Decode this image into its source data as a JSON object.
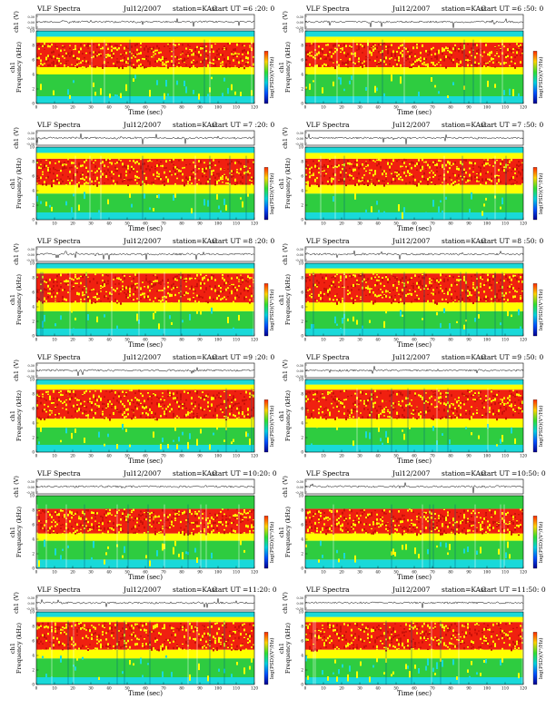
{
  "page": {
    "title_prefix": "VLF Spectra",
    "panel_count": 12
  },
  "chart_data": [
    {
      "type": "heatmap",
      "title": "VLF Spectra",
      "date": "Jul12/2007",
      "station": "station=KAG",
      "start": "start  UT =6 :20: 0",
      "ylabel_top": "ch1 (V)",
      "ylabel_main": "Frequency (kHz)",
      "series_label": "ch1",
      "xlabel": "Time (sec)",
      "colorbar_label": "log(PSD)(V²/Hz)",
      "xlim": [
        0,
        120
      ],
      "ylim": [
        0,
        10
      ],
      "x_ticks": [
        "0",
        "10",
        "20",
        "30",
        "40",
        "50",
        "60",
        "70",
        "80",
        "90",
        "100",
        "110",
        "120"
      ],
      "y_ticks": [
        "0",
        "2",
        "4",
        "6",
        "8",
        "10"
      ],
      "amp_ticks": [
        "0.30",
        "0.00",
        "-0.30"
      ],
      "bands": [
        {
          "from": 0,
          "to": 1,
          "level": "cyan"
        },
        {
          "from": 1,
          "to": 4,
          "level": "green"
        },
        {
          "from": 4,
          "to": 5,
          "level": "yellow"
        },
        {
          "from": 5,
          "to": 8.4,
          "level": "red"
        },
        {
          "from": 8.4,
          "to": 9.2,
          "level": "yellow"
        },
        {
          "from": 9.2,
          "to": 10,
          "level": "cyan"
        }
      ]
    },
    {
      "type": "heatmap",
      "title": "VLF Spectra",
      "date": "Jul12/2007",
      "station": "station=KAG",
      "start": "start  UT =6 :50: 0",
      "ylabel_top": "ch1 (V)",
      "ylabel_main": "Frequency (kHz)",
      "series_label": "ch1",
      "xlabel": "Time (sec)",
      "colorbar_label": "log(PSD)(V²/Hz)",
      "xlim": [
        0,
        120
      ],
      "ylim": [
        0,
        10
      ],
      "x_ticks": [
        "0",
        "10",
        "20",
        "30",
        "40",
        "50",
        "60",
        "70",
        "80",
        "90",
        "100",
        "110",
        "120"
      ],
      "y_ticks": [
        "0",
        "2",
        "4",
        "6",
        "8",
        "10"
      ],
      "amp_ticks": [
        "0.30",
        "0.00",
        "-0.30"
      ],
      "bands": [
        {
          "from": 0,
          "to": 1,
          "level": "cyan"
        },
        {
          "from": 1,
          "to": 4,
          "level": "green"
        },
        {
          "from": 4,
          "to": 5,
          "level": "yellow"
        },
        {
          "from": 5,
          "to": 8.4,
          "level": "red"
        },
        {
          "from": 8.4,
          "to": 9.2,
          "level": "yellow"
        },
        {
          "from": 9.2,
          "to": 10,
          "level": "cyan"
        }
      ]
    },
    {
      "type": "heatmap",
      "title": "VLF Spectra",
      "date": "Jul12/2007",
      "station": "station=KAG",
      "start": "start  UT =7 :20: 0",
      "ylabel_top": "ch1 (V)",
      "ylabel_main": "Frequency (kHz)",
      "series_label": "ch1",
      "xlabel": "Time (sec)",
      "colorbar_label": "log(PSD)(V²/Hz)",
      "xlim": [
        0,
        120
      ],
      "ylim": [
        0,
        10
      ],
      "x_ticks": [
        "0",
        "10",
        "20",
        "30",
        "40",
        "50",
        "60",
        "70",
        "80",
        "90",
        "100",
        "110",
        "120"
      ],
      "y_ticks": [
        "0",
        "2",
        "4",
        "6",
        "8",
        "10"
      ],
      "amp_ticks": [
        "0.30",
        "0.00",
        "-0.30"
      ],
      "bands": [
        {
          "from": 0,
          "to": 1,
          "level": "cyan"
        },
        {
          "from": 1,
          "to": 3.6,
          "level": "green"
        },
        {
          "from": 3.6,
          "to": 4.8,
          "level": "yellow"
        },
        {
          "from": 4.8,
          "to": 8.4,
          "level": "red"
        },
        {
          "from": 8.4,
          "to": 9.2,
          "level": "yellow"
        },
        {
          "from": 9.2,
          "to": 10,
          "level": "cyan"
        }
      ]
    },
    {
      "type": "heatmap",
      "title": "VLF Spectra",
      "date": "Jul12/2007",
      "station": "station=KAG",
      "start": "start  UT =7 :50: 0",
      "ylabel_top": "ch1 (V)",
      "ylabel_main": "Frequency (kHz)",
      "series_label": "ch1",
      "xlabel": "Time (sec)",
      "colorbar_label": "log(PSD)(V²/Hz)",
      "xlim": [
        0,
        120
      ],
      "ylim": [
        0,
        10
      ],
      "x_ticks": [
        "0",
        "10",
        "20",
        "30",
        "40",
        "50",
        "60",
        "70",
        "80",
        "90",
        "100",
        "110",
        "120"
      ],
      "y_ticks": [
        "0",
        "2",
        "4",
        "6",
        "8",
        "10"
      ],
      "amp_ticks": [
        "0.30",
        "0.00",
        "-0.30"
      ],
      "bands": [
        {
          "from": 0,
          "to": 1,
          "level": "cyan"
        },
        {
          "from": 1,
          "to": 3.6,
          "level": "green"
        },
        {
          "from": 3.6,
          "to": 4.8,
          "level": "yellow"
        },
        {
          "from": 4.8,
          "to": 8.4,
          "level": "red"
        },
        {
          "from": 8.4,
          "to": 9.2,
          "level": "yellow"
        },
        {
          "from": 9.2,
          "to": 10,
          "level": "cyan"
        }
      ]
    },
    {
      "type": "heatmap",
      "title": "VLF Spectra",
      "date": "Jul12/2007",
      "station": "station=KAG",
      "start": "start  UT =8 :20: 0",
      "ylabel_top": "ch1 (V)",
      "ylabel_main": "Frequency (kHz)",
      "series_label": "ch1",
      "xlabel": "Time (sec)",
      "colorbar_label": "log(PSD)(V²/Hz)",
      "xlim": [
        0,
        120
      ],
      "ylim": [
        0,
        10
      ],
      "x_ticks": [
        "0",
        "10",
        "20",
        "30",
        "40",
        "50",
        "60",
        "70",
        "80",
        "90",
        "100",
        "110",
        "120"
      ],
      "y_ticks": [
        "0",
        "2",
        "4",
        "6",
        "8",
        "10"
      ],
      "amp_ticks": [
        "0.30",
        "0.00",
        "-0.30"
      ],
      "bands": [
        {
          "from": 0,
          "to": 1,
          "level": "cyan"
        },
        {
          "from": 1,
          "to": 3.4,
          "level": "green"
        },
        {
          "from": 3.4,
          "to": 4.6,
          "level": "yellow"
        },
        {
          "from": 4.6,
          "to": 8.6,
          "level": "red"
        },
        {
          "from": 8.6,
          "to": 9.3,
          "level": "yellow"
        },
        {
          "from": 9.3,
          "to": 10,
          "level": "cyan"
        }
      ]
    },
    {
      "type": "heatmap",
      "title": "VLF Spectra",
      "date": "Jul12/2007",
      "station": "station=KAG",
      "start": "start  UT =8 :50: 0",
      "ylabel_top": "ch1 (V)",
      "ylabel_main": "Frequency (kHz)",
      "series_label": "ch1",
      "xlabel": "Time (sec)",
      "colorbar_label": "log(PSD)(V²/Hz)",
      "xlim": [
        0,
        120
      ],
      "ylim": [
        0,
        10
      ],
      "x_ticks": [
        "0",
        "10",
        "20",
        "30",
        "40",
        "50",
        "60",
        "70",
        "80",
        "90",
        "100",
        "110",
        "120"
      ],
      "y_ticks": [
        "0",
        "2",
        "4",
        "6",
        "8",
        "10"
      ],
      "amp_ticks": [
        "0.30",
        "0.00",
        "-0.30"
      ],
      "bands": [
        {
          "from": 0,
          "to": 1,
          "level": "cyan"
        },
        {
          "from": 1,
          "to": 3.4,
          "level": "green"
        },
        {
          "from": 3.4,
          "to": 4.6,
          "level": "yellow"
        },
        {
          "from": 4.6,
          "to": 8.6,
          "level": "red"
        },
        {
          "from": 8.6,
          "to": 9.3,
          "level": "yellow"
        },
        {
          "from": 9.3,
          "to": 10,
          "level": "cyan"
        }
      ]
    },
    {
      "type": "heatmap",
      "title": "VLF Spectra",
      "date": "Jul12/2007",
      "station": "station=KAG",
      "start": "start  UT =9 :20: 0",
      "ylabel_top": "ch1 (V)",
      "ylabel_main": "Frequency (kHz)",
      "series_label": "ch1",
      "xlabel": "Time (sec)",
      "colorbar_label": "log(PSD)(V²/Hz)",
      "xlim": [
        0,
        120
      ],
      "ylim": [
        0,
        10
      ],
      "x_ticks": [
        "0",
        "10",
        "20",
        "30",
        "40",
        "50",
        "60",
        "70",
        "80",
        "90",
        "100",
        "110",
        "120"
      ],
      "y_ticks": [
        "0",
        "2",
        "4",
        "6",
        "8",
        "10"
      ],
      "amp_ticks": [
        "0.30",
        "0.00",
        "-0.30"
      ],
      "bands": [
        {
          "from": 0,
          "to": 1,
          "level": "cyan"
        },
        {
          "from": 1,
          "to": 3.4,
          "level": "green"
        },
        {
          "from": 3.4,
          "to": 4.6,
          "level": "yellow"
        },
        {
          "from": 4.6,
          "to": 8.6,
          "level": "red"
        },
        {
          "from": 8.6,
          "to": 9.3,
          "level": "yellow"
        },
        {
          "from": 9.3,
          "to": 10,
          "level": "cyan"
        }
      ]
    },
    {
      "type": "heatmap",
      "title": "VLF Spectra",
      "date": "Jul12/2007",
      "station": "station=KAG",
      "start": "start  UT =9 :50: 0",
      "ylabel_top": "ch1 (V)",
      "ylabel_main": "Frequency (kHz)",
      "series_label": "ch1",
      "xlabel": "Time (sec)",
      "colorbar_label": "log(PSD)(V²/Hz)",
      "xlim": [
        0,
        120
      ],
      "ylim": [
        0,
        10
      ],
      "x_ticks": [
        "0",
        "10",
        "20",
        "30",
        "40",
        "50",
        "60",
        "70",
        "80",
        "90",
        "100",
        "110",
        "120"
      ],
      "y_ticks": [
        "0",
        "2",
        "4",
        "6",
        "8",
        "10"
      ],
      "amp_ticks": [
        "0.30",
        "0.00",
        "-0.30"
      ],
      "bands": [
        {
          "from": 0,
          "to": 1,
          "level": "cyan"
        },
        {
          "from": 1,
          "to": 3.4,
          "level": "green"
        },
        {
          "from": 3.4,
          "to": 4.6,
          "level": "yellow"
        },
        {
          "from": 4.6,
          "to": 8.6,
          "level": "red"
        },
        {
          "from": 8.6,
          "to": 9.3,
          "level": "yellow"
        },
        {
          "from": 9.3,
          "to": 10,
          "level": "cyan"
        }
      ]
    },
    {
      "type": "heatmap",
      "title": "VLF Spectra",
      "date": "Jul12/2007",
      "station": "station=KAG",
      "start": "start  UT =10:20: 0",
      "ylabel_top": "ch1 (V)",
      "ylabel_main": "Frequency (kHz)",
      "series_label": "ch1",
      "xlabel": "Time (sec)",
      "colorbar_label": "log(PSD)(V²/Hz)",
      "xlim": [
        0,
        120
      ],
      "ylim": [
        0,
        10
      ],
      "x_ticks": [
        "0",
        "10",
        "20",
        "30",
        "40",
        "50",
        "60",
        "70",
        "80",
        "90",
        "100",
        "110",
        "120"
      ],
      "y_ticks": [
        "0",
        "2",
        "4",
        "6",
        "8",
        "10"
      ],
      "amp_ticks": [
        "0.30",
        "0.00",
        "-0.30"
      ],
      "bands": [
        {
          "from": 0,
          "to": 1.2,
          "level": "cyan"
        },
        {
          "from": 1.2,
          "to": 3.8,
          "level": "green"
        },
        {
          "from": 3.8,
          "to": 4.8,
          "level": "yellow"
        },
        {
          "from": 4.8,
          "to": 8.2,
          "level": "red"
        },
        {
          "from": 8.2,
          "to": 10,
          "level": "green"
        }
      ]
    },
    {
      "type": "heatmap",
      "title": "VLF Spectra",
      "date": "Jul12/2007",
      "station": "station=KAG",
      "start": "start  UT =10:50: 0",
      "ylabel_top": "ch1 (V)",
      "ylabel_main": "Frequency (kHz)",
      "series_label": "ch1",
      "xlabel": "Time (sec)",
      "colorbar_label": "log(PSD)(V²/Hz)",
      "xlim": [
        0,
        120
      ],
      "ylim": [
        0,
        10
      ],
      "x_ticks": [
        "0",
        "10",
        "20",
        "30",
        "40",
        "50",
        "60",
        "70",
        "80",
        "90",
        "100",
        "110",
        "120"
      ],
      "y_ticks": [
        "0",
        "2",
        "4",
        "6",
        "8",
        "10"
      ],
      "amp_ticks": [
        "0.30",
        "0.00",
        "-0.30"
      ],
      "bands": [
        {
          "from": 0,
          "to": 1.2,
          "level": "cyan"
        },
        {
          "from": 1.2,
          "to": 3.8,
          "level": "green"
        },
        {
          "from": 3.8,
          "to": 4.8,
          "level": "yellow"
        },
        {
          "from": 4.8,
          "to": 8.2,
          "level": "red"
        },
        {
          "from": 8.2,
          "to": 10,
          "level": "green"
        }
      ]
    },
    {
      "type": "heatmap",
      "title": "VLF Spectra",
      "date": "Jul12/2007",
      "station": "station=KAG",
      "start": "start  UT =11:20: 0",
      "ylabel_top": "ch1 (V)",
      "ylabel_main": "Frequency (kHz)",
      "series_label": "ch1",
      "xlabel": "Time (sec)",
      "colorbar_label": "log(PSD)(V²/Hz)",
      "xlim": [
        0,
        120
      ],
      "ylim": [
        0,
        10
      ],
      "x_ticks": [
        "0",
        "10",
        "20",
        "30",
        "40",
        "50",
        "60",
        "70",
        "80",
        "90",
        "100",
        "110",
        "120"
      ],
      "y_ticks": [
        "0",
        "2",
        "4",
        "6",
        "8",
        "10"
      ],
      "amp_ticks": [
        "0.30",
        "0.00",
        "-0.30"
      ],
      "bands": [
        {
          "from": 0,
          "to": 1,
          "level": "cyan"
        },
        {
          "from": 1,
          "to": 3.6,
          "level": "green"
        },
        {
          "from": 3.6,
          "to": 4.8,
          "level": "yellow"
        },
        {
          "from": 4.8,
          "to": 8.6,
          "level": "red"
        },
        {
          "from": 8.6,
          "to": 9.3,
          "level": "yellow"
        },
        {
          "from": 9.3,
          "to": 10,
          "level": "cyan"
        }
      ]
    },
    {
      "type": "heatmap",
      "title": "VLF Spectra",
      "date": "Jul12/2007",
      "station": "station=KAG",
      "start": "start  UT =11:50: 0",
      "ylabel_top": "ch1 (V)",
      "ylabel_main": "Frequency (kHz)",
      "series_label": "ch1",
      "xlabel": "Time (sec)",
      "colorbar_label": "log(PSD)(V²/Hz)",
      "xlim": [
        0,
        120
      ],
      "ylim": [
        0,
        10
      ],
      "x_ticks": [
        "0",
        "10",
        "20",
        "30",
        "40",
        "50",
        "60",
        "70",
        "80",
        "90",
        "100",
        "110",
        "120"
      ],
      "y_ticks": [
        "0",
        "2",
        "4",
        "6",
        "8",
        "10"
      ],
      "amp_ticks": [
        "0.30",
        "0.00",
        "-0.30"
      ],
      "bands": [
        {
          "from": 0,
          "to": 1,
          "level": "cyan"
        },
        {
          "from": 1,
          "to": 3.6,
          "level": "green"
        },
        {
          "from": 3.6,
          "to": 4.8,
          "level": "yellow"
        },
        {
          "from": 4.8,
          "to": 8.6,
          "level": "red"
        },
        {
          "from": 8.6,
          "to": 9.3,
          "level": "yellow"
        },
        {
          "from": 9.3,
          "to": 10,
          "level": "cyan"
        }
      ]
    }
  ],
  "colors": {
    "cyan": "#19d9d9",
    "green": "#2ecc40",
    "yellow": "#ffff00",
    "red": "#f02010",
    "colorbar": [
      "#ff2a00",
      "#ffd400",
      "#30e030",
      "#00d0e0",
      "#0050ff",
      "#000090"
    ]
  }
}
